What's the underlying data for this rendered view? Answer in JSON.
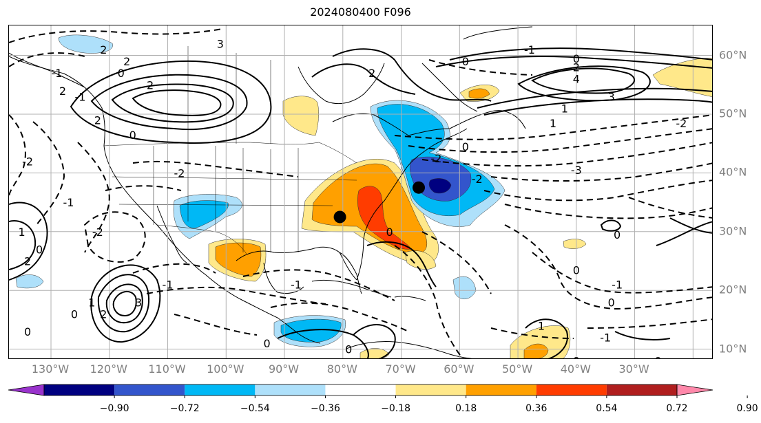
{
  "title": "2024080400 F096",
  "lon_labels": [
    "130°W",
    "120°W",
    "110°W",
    "100°W",
    "90°W",
    "80°W",
    "70°W",
    "60°W",
    "50°W",
    "40°W",
    "30°W"
  ],
  "lat_labels": [
    "60°N",
    "50°N",
    "40°N",
    "30°N",
    "20°N",
    "10°N"
  ],
  "colorbar": {
    "ticks": [
      "−0.90",
      "−0.72",
      "−0.54",
      "−0.36",
      "−0.18",
      "0.18",
      "0.36",
      "0.54",
      "0.72",
      "0.90"
    ],
    "colors": [
      "#9933cc",
      "#000080",
      "#3355cc",
      "#00b8f5",
      "#aee0fa",
      "#ffffff",
      "#ffe88a",
      "#ffa000",
      "#ff3c00",
      "#b01e1e",
      "#ff88aa"
    ]
  },
  "markers": [
    {
      "name": "low-center-marker",
      "lon": -67,
      "lat": 37.5
    },
    {
      "name": "coastal-center-marker",
      "lon": -80.5,
      "lat": 32.5
    }
  ],
  "contour_labels": [
    {
      "text": "3",
      "lon": -101,
      "lat": 62
    },
    {
      "text": "2",
      "lon": -121,
      "lat": 61
    },
    {
      "text": "2",
      "lon": -117,
      "lat": 59
    },
    {
      "text": "-1",
      "lon": -129,
      "lat": 57
    },
    {
      "text": "0",
      "lon": -118,
      "lat": 57
    },
    {
      "text": "2",
      "lon": -128,
      "lat": 54
    },
    {
      "text": "2",
      "lon": -113,
      "lat": 55
    },
    {
      "text": "-1",
      "lon": -125,
      "lat": 53
    },
    {
      "text": "2",
      "lon": -122,
      "lat": 49
    },
    {
      "text": "0",
      "lon": -116,
      "lat": 46.5
    },
    {
      "text": "-2",
      "lon": -134,
      "lat": 42
    },
    {
      "text": "-2",
      "lon": -108,
      "lat": 40
    },
    {
      "text": "-1",
      "lon": -127,
      "lat": 35
    },
    {
      "text": "-2",
      "lon": -122,
      "lat": 30
    },
    {
      "text": "1",
      "lon": -135,
      "lat": 30
    },
    {
      "text": "0",
      "lon": -132,
      "lat": 27
    },
    {
      "text": "2",
      "lon": -134,
      "lat": 25
    },
    {
      "text": "-1",
      "lon": -110,
      "lat": 21
    },
    {
      "text": "3",
      "lon": -115,
      "lat": 18
    },
    {
      "text": "1",
      "lon": -123,
      "lat": 18
    },
    {
      "text": "2",
      "lon": -121,
      "lat": 16
    },
    {
      "text": "0",
      "lon": -126,
      "lat": 16
    },
    {
      "text": "0",
      "lon": -134,
      "lat": 13
    },
    {
      "text": "-1",
      "lon": -88,
      "lat": 21
    },
    {
      "text": "0",
      "lon": -93,
      "lat": 11
    },
    {
      "text": "0",
      "lon": -79,
      "lat": 10
    },
    {
      "text": "0",
      "lon": -59,
      "lat": 59
    },
    {
      "text": "-1",
      "lon": -48,
      "lat": 61
    },
    {
      "text": "0",
      "lon": -40,
      "lat": 59.5
    },
    {
      "text": "2",
      "lon": -40,
      "lat": 58
    },
    {
      "text": "4",
      "lon": -40,
      "lat": 56
    },
    {
      "text": "2",
      "lon": -75,
      "lat": 57
    },
    {
      "text": "3",
      "lon": -34,
      "lat": 53
    },
    {
      "text": "1",
      "lon": -42,
      "lat": 51
    },
    {
      "text": "1",
      "lon": -44,
      "lat": 48.5
    },
    {
      "text": "-2",
      "lon": -22,
      "lat": 48.5
    },
    {
      "text": "0",
      "lon": -59,
      "lat": 44.5
    },
    {
      "text": "-2",
      "lon": -64,
      "lat": 42.5
    },
    {
      "text": "-3",
      "lon": -40,
      "lat": 40.5
    },
    {
      "text": "0",
      "lon": -72,
      "lat": 30
    },
    {
      "text": "0",
      "lon": -33,
      "lat": 29.5
    },
    {
      "text": "0",
      "lon": -40,
      "lat": 23.5
    },
    {
      "text": "-1",
      "lon": -33,
      "lat": 21
    },
    {
      "text": "0",
      "lon": -34,
      "lat": 18
    },
    {
      "text": "1",
      "lon": -46,
      "lat": 14
    },
    {
      "text": "-1",
      "lon": -35,
      "lat": 12
    },
    {
      "text": "0",
      "lon": -40,
      "lat": 8
    },
    {
      "text": "0",
      "lon": -26,
      "lat": 8
    },
    {
      "text": "-2",
      "lon": -57,
      "lat": 39
    }
  ]
}
